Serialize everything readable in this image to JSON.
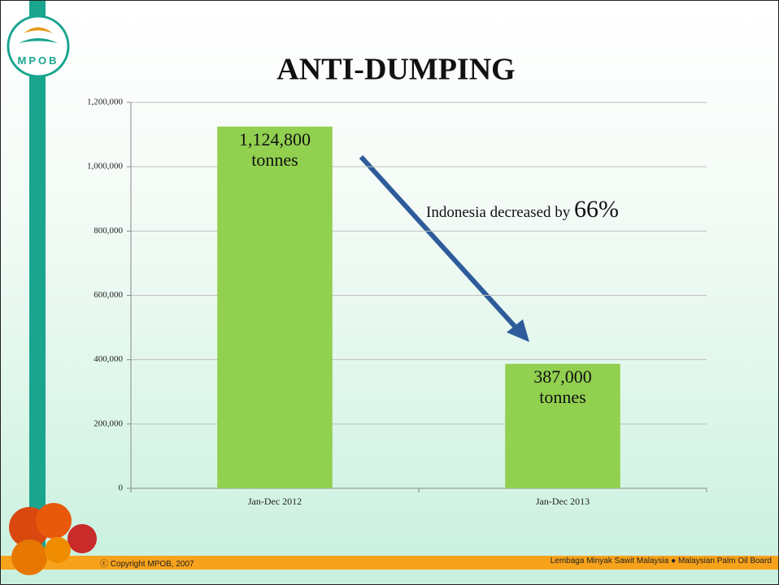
{
  "logo": {
    "text": "MPOB"
  },
  "chart_data": {
    "type": "bar",
    "title": "ANTI-DUMPING",
    "categories": [
      "Jan-Dec 2012",
      "Jan-Dec 2013"
    ],
    "values": [
      1124800,
      387000
    ],
    "value_labels": [
      "1,124,800 tonnes",
      "387,000 tonnes"
    ],
    "color": "#92d050",
    "ylim": [
      0,
      1200000
    ],
    "yticks": [
      0,
      {
        "value": 200000,
        "label": "200,000"
      },
      {
        "value": 400000,
        "label": "400,000"
      },
      {
        "value": 600000,
        "label": "600,000"
      },
      {
        "value": 800000,
        "label": "800,000"
      },
      {
        "value": 1000000,
        "label": "1,000,000"
      },
      {
        "value": 1200000,
        "label": "1,200,000"
      }
    ],
    "grid": true,
    "annotation": {
      "text": "Indonesia decreased by",
      "highlight": "66%"
    }
  },
  "footer": {
    "copyright": "Copyright MPOB, 2007",
    "left_org": "Lembaga Minyak Sawit Malaysia",
    "right_org": "Malaysian Palm Oil Board"
  }
}
